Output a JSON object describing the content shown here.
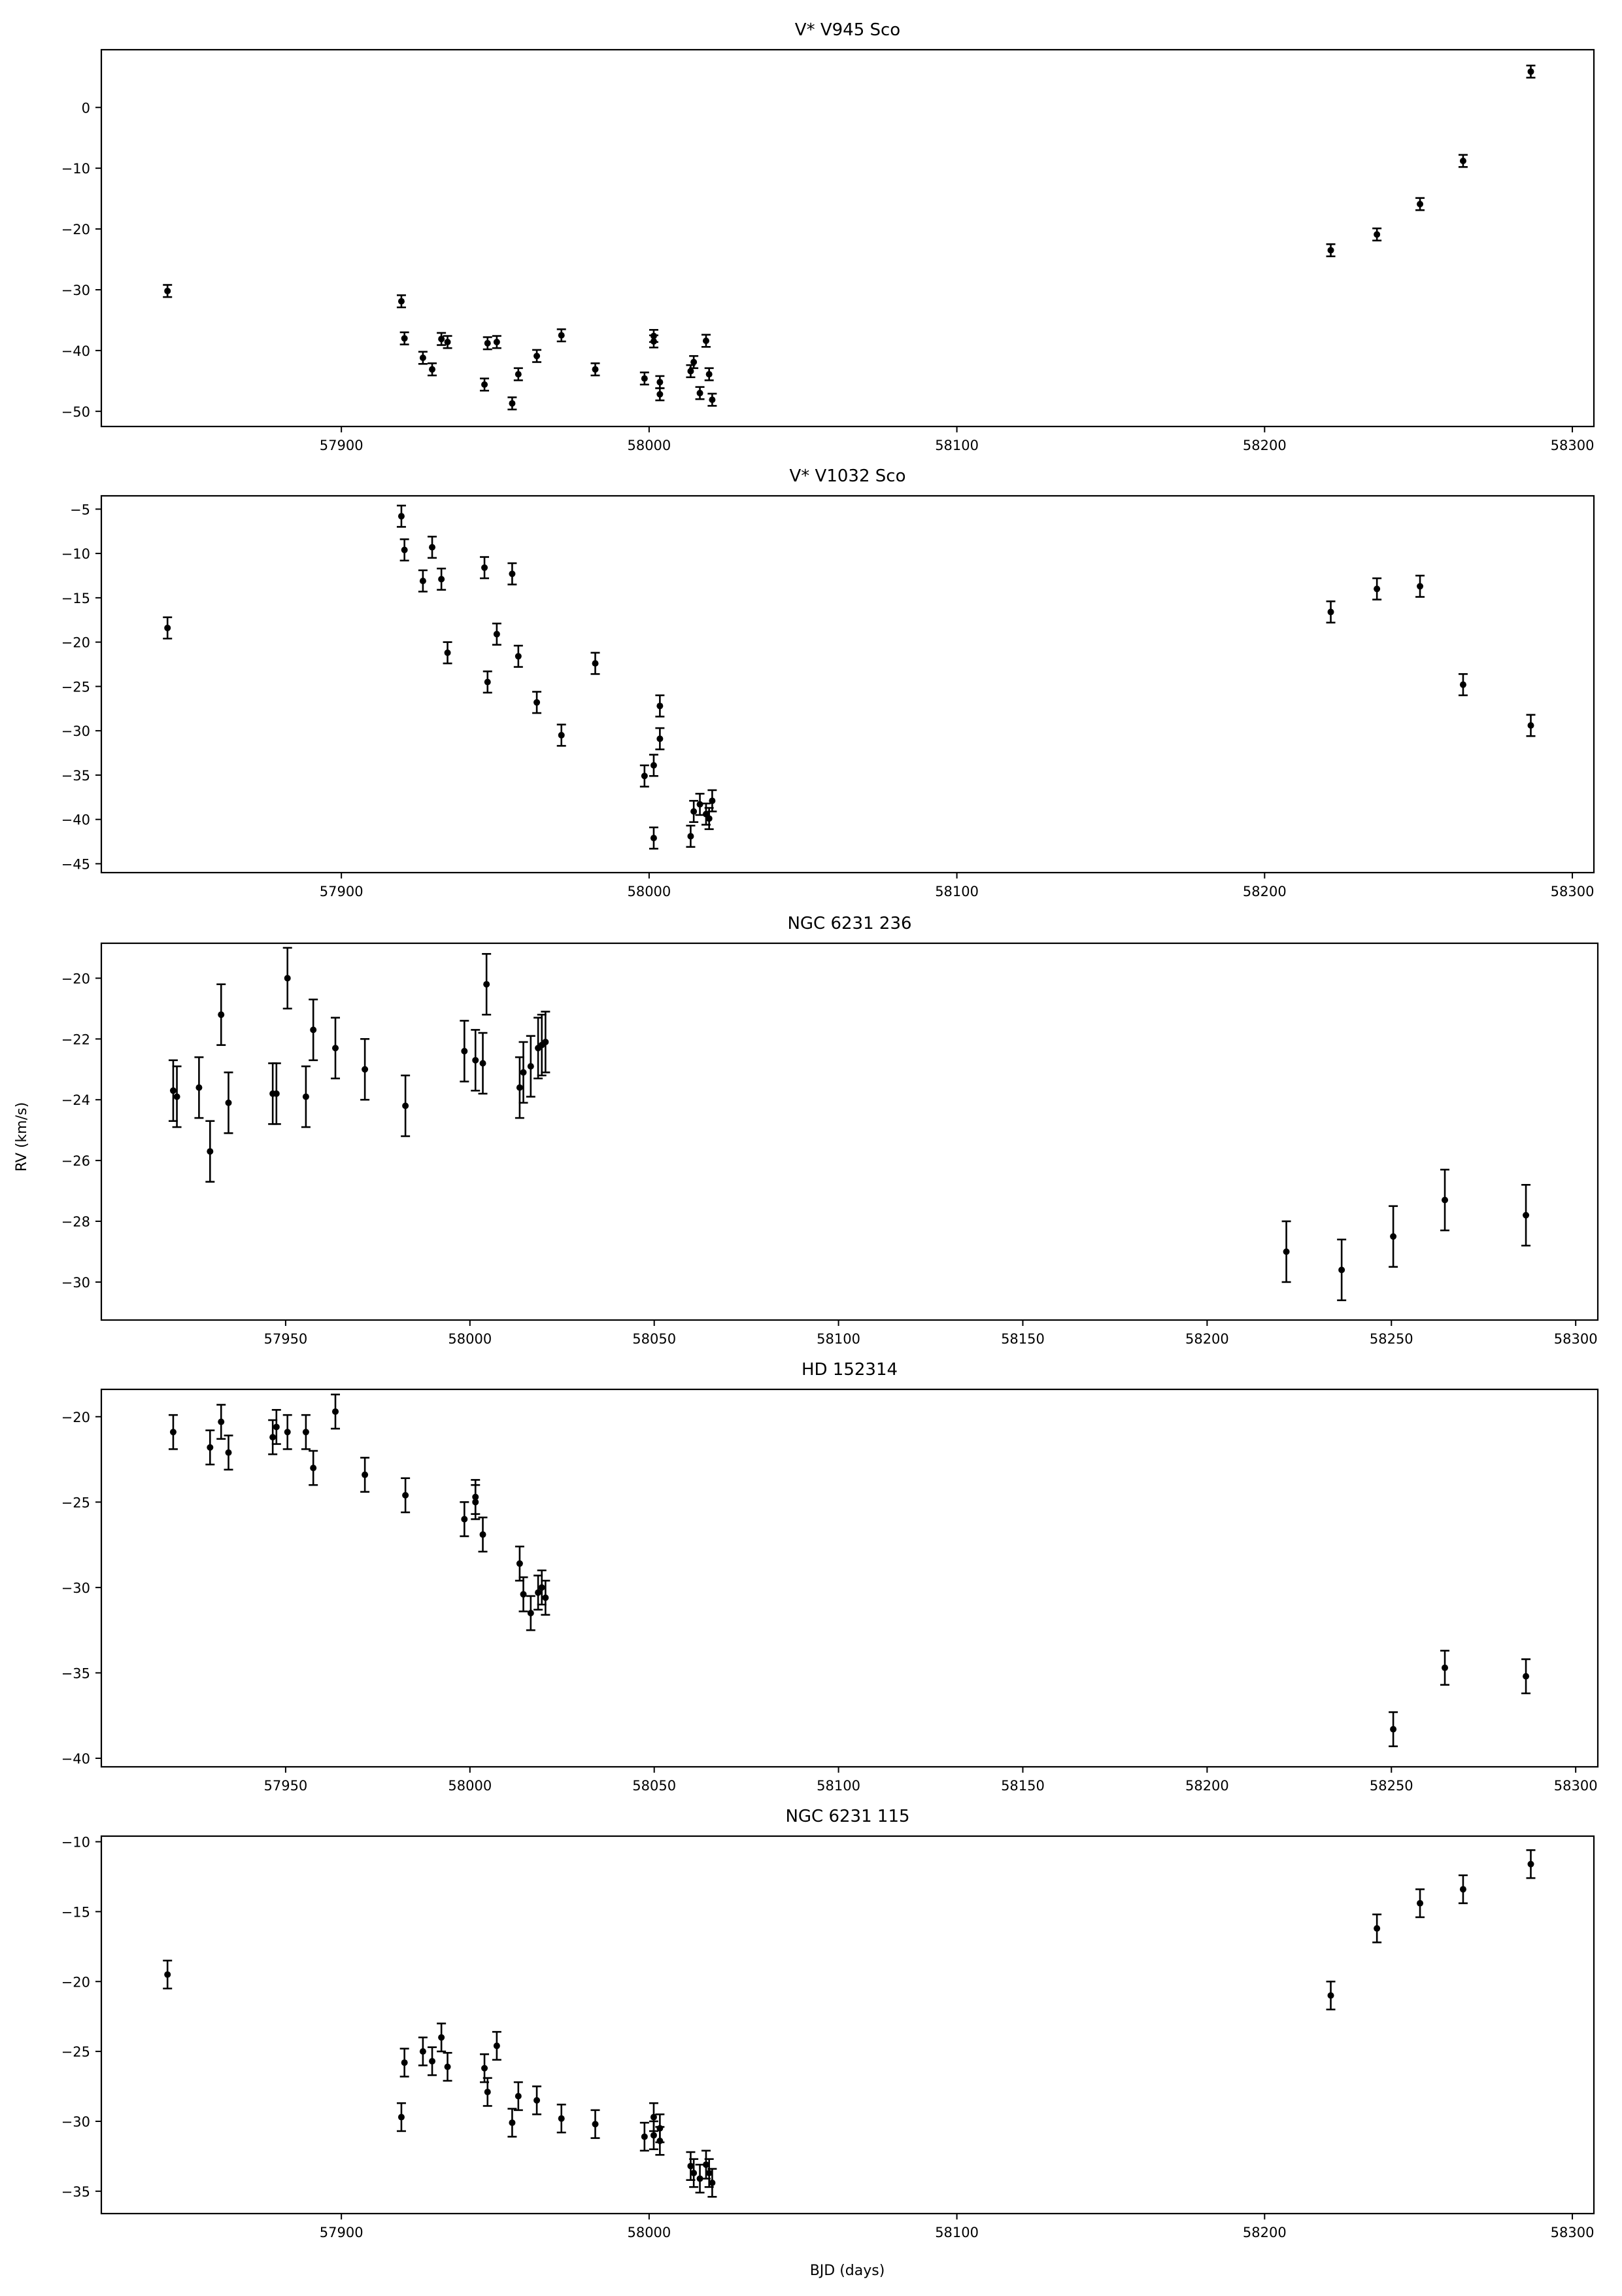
{
  "figure": {
    "ylabel": "RV (km/s)",
    "xlabel": "BJD (days)"
  },
  "chart_data": [
    {
      "type": "scatter",
      "title": "V* V945 Sco",
      "xlabel": "",
      "ylabel": "",
      "xlim": [
        57822,
        58307
      ],
      "ylim": [
        -52.5,
        9.5
      ],
      "xticks": [
        57900,
        58000,
        58100,
        58200,
        58300
      ],
      "yticks": [
        0,
        -10,
        -20,
        -30,
        -40,
        -50
      ],
      "error_bar": 1.0,
      "x": [
        57843.5,
        57919.5,
        57920.5,
        57926.5,
        57929.5,
        57932.5,
        57934.5,
        57946.5,
        57947.5,
        57950.5,
        57955.5,
        57957.5,
        57963.5,
        57971.5,
        57982.5,
        57998.5,
        58001.5,
        58001.5,
        58003.5,
        58003.5,
        58013.5,
        58014.5,
        58016.5,
        58018.5,
        58019.5,
        58020.5,
        58221.5,
        58236.5,
        58250.5,
        58264.5,
        58286.5
      ],
      "y": [
        -30.2,
        -31.9,
        -38.0,
        -41.2,
        -43.1,
        -38.1,
        -38.6,
        -45.6,
        -38.8,
        -38.6,
        -48.7,
        -43.9,
        -40.9,
        -37.5,
        -43.1,
        -44.6,
        -37.6,
        -38.5,
        -45.2,
        -47.2,
        -43.4,
        -41.9,
        -47.0,
        -38.4,
        -43.9,
        -48.1,
        -23.5,
        -20.9,
        -15.9,
        -8.8,
        5.9
      ]
    },
    {
      "type": "scatter",
      "title": "V* V1032 Sco",
      "xlabel": "",
      "ylabel": "",
      "xlim": [
        57822,
        58307
      ],
      "ylim": [
        -46,
        -3.5
      ],
      "xticks": [
        57900,
        58000,
        58100,
        58200,
        58300
      ],
      "yticks": [
        -5,
        -10,
        -15,
        -20,
        -25,
        -30,
        -35,
        -40,
        -45
      ],
      "error_bar": 1.2,
      "x": [
        57843.5,
        57919.5,
        57920.5,
        57926.5,
        57929.5,
        57932.5,
        57934.5,
        57946.5,
        57947.5,
        57950.5,
        57955.5,
        57957.5,
        57963.5,
        57971.5,
        57982.5,
        57998.5,
        58001.5,
        58001.5,
        58003.5,
        58003.5,
        58013.5,
        58014.5,
        58016.5,
        58018.5,
        58019.5,
        58020.5,
        58221.5,
        58236.5,
        58250.5,
        58264.5,
        58286.5
      ],
      "y": [
        -18.4,
        -5.8,
        -9.6,
        -13.1,
        -9.3,
        -12.9,
        -21.2,
        -11.6,
        -24.5,
        -19.1,
        -12.3,
        -21.6,
        -26.8,
        -30.5,
        -22.4,
        -35.1,
        -33.9,
        -42.1,
        -27.2,
        -30.9,
        -41.9,
        -39.1,
        -38.3,
        -39.4,
        -39.9,
        -37.9,
        -16.6,
        -14.0,
        -13.7,
        -24.8,
        -29.4
      ]
    },
    {
      "type": "scatter",
      "title": "NGC 6231 236",
      "xlabel": "",
      "ylabel": "RV (km/s)",
      "xlim": [
        57900,
        58306
      ],
      "ylim": [
        -31.25,
        -18.85
      ],
      "xticks": [
        57950,
        58000,
        58050,
        58100,
        58150,
        58200,
        58250,
        58300
      ],
      "yticks": [
        -20,
        -22,
        -24,
        -26,
        -28,
        -30
      ],
      "error_bar": 1.0,
      "x": [
        57919.5,
        57920.5,
        57926.5,
        57929.5,
        57932.5,
        57934.5,
        57946.5,
        57947.5,
        57950.5,
        57955.5,
        57957.5,
        57963.5,
        57971.5,
        57982.5,
        57998.5,
        58001.5,
        58003.5,
        58004.5,
        58013.5,
        58014.5,
        58016.5,
        58018.5,
        58019.5,
        58020.5,
        58221.5,
        58236.5,
        58250.5,
        58264.5,
        58286.5
      ],
      "y": [
        -23.7,
        -23.9,
        -23.6,
        -25.7,
        -21.2,
        -24.1,
        -23.8,
        -23.8,
        -20.0,
        -23.9,
        -21.7,
        -22.3,
        -23.0,
        -24.2,
        -22.4,
        -22.7,
        -22.8,
        -20.2,
        -23.6,
        -23.1,
        -22.9,
        -22.3,
        -22.2,
        -22.1,
        -29.0,
        -29.6,
        -28.5,
        -27.3,
        -27.8
      ]
    },
    {
      "type": "scatter",
      "title": "HD 152314",
      "xlabel": "",
      "ylabel": "",
      "xlim": [
        57900,
        58306
      ],
      "ylim": [
        -40.5,
        -18.4
      ],
      "xticks": [
        57950,
        58000,
        58050,
        58100,
        58150,
        58200,
        58250,
        58300
      ],
      "yticks": [
        -20,
        -25,
        -30,
        -35,
        -40
      ],
      "error_bar": 1.0,
      "x": [
        57919.5,
        57929.5,
        57932.5,
        57934.5,
        57946.5,
        57947.5,
        57950.5,
        57955.5,
        57957.5,
        57963.5,
        57971.5,
        57982.5,
        57998.5,
        58001.5,
        58001.5,
        58003.5,
        58013.5,
        58014.5,
        58016.5,
        58018.5,
        58019.5,
        58020.5,
        58250.5,
        58264.5,
        58286.5
      ],
      "y": [
        -20.9,
        -21.8,
        -20.3,
        -22.1,
        -21.2,
        -20.6,
        -20.9,
        -20.9,
        -23.0,
        -19.7,
        -23.4,
        -24.6,
        -26.0,
        -25.0,
        -24.7,
        -26.9,
        -28.6,
        -30.4,
        -31.5,
        -30.3,
        -30.0,
        -30.6,
        -38.3,
        -34.7,
        -35.2
      ]
    },
    {
      "type": "scatter",
      "title": "NGC 6231 115",
      "xlabel": "BJD (days)",
      "ylabel": "",
      "xlim": [
        57822,
        58307
      ],
      "ylim": [
        -36.6,
        -9.6
      ],
      "xticks": [
        57900,
        58000,
        58100,
        58200,
        58300
      ],
      "yticks": [
        -10,
        -15,
        -20,
        -25,
        -30,
        -35
      ],
      "error_bar": 1.0,
      "x": [
        57843.5,
        57919.5,
        57920.5,
        57926.5,
        57929.5,
        57932.5,
        57934.5,
        57946.5,
        57947.5,
        57950.5,
        57955.5,
        57957.5,
        57963.5,
        57971.5,
        57982.5,
        57998.5,
        58001.5,
        58001.5,
        58003.5,
        58003.5,
        58013.5,
        58014.5,
        58016.5,
        58018.5,
        58019.5,
        58020.5,
        58221.5,
        58236.5,
        58250.5,
        58264.5,
        58286.5
      ],
      "y": [
        -19.5,
        -29.7,
        -25.8,
        -25.0,
        -25.7,
        -24.0,
        -26.1,
        -26.2,
        -27.9,
        -24.6,
        -30.1,
        -28.2,
        -28.5,
        -29.8,
        -30.2,
        -31.1,
        -29.7,
        -31.0,
        -30.5,
        -31.4,
        -33.2,
        -33.7,
        -34.1,
        -33.1,
        -33.7,
        -34.4,
        -21.0,
        -16.2,
        -14.4,
        -13.4,
        -11.6
      ]
    }
  ]
}
